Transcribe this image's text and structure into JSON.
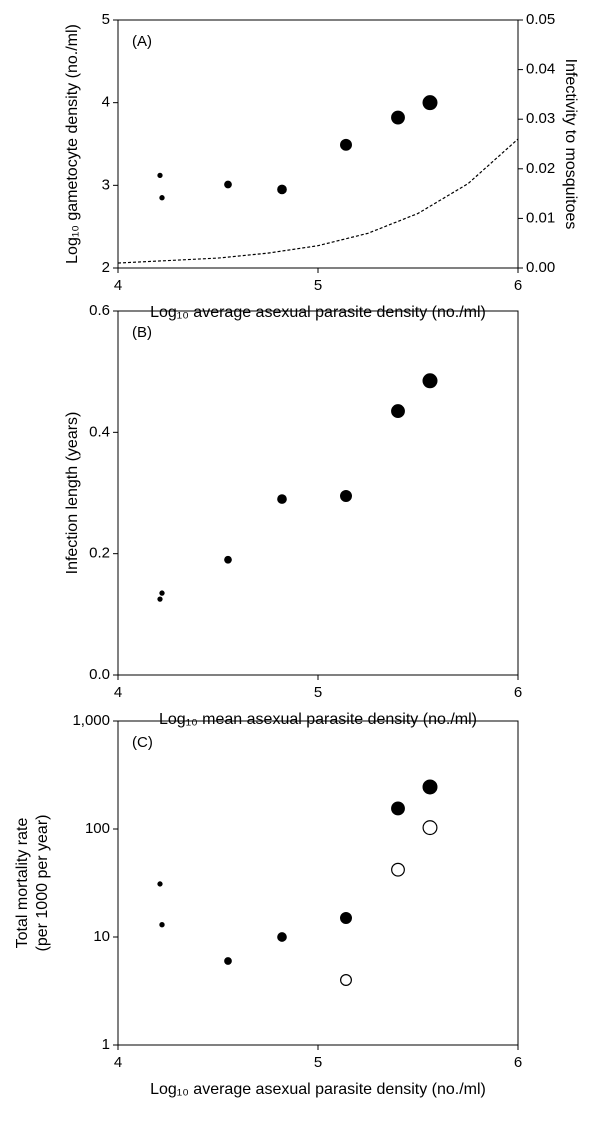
{
  "chart_data": [
    {
      "type": "scatter",
      "annotation": "(A)",
      "xlabel": "Log₁₀ average asexual parasite density (no./ml)",
      "ylabel": "Log₁₀ gametocyte density (no./ml)",
      "y2label": "Infectivity to mosquitoes",
      "xlim": [
        4,
        6
      ],
      "xticks": [
        4,
        5,
        6
      ],
      "ylim": [
        2,
        5
      ],
      "yticks": [
        2,
        3,
        4,
        5
      ],
      "y2lim": [
        0,
        0.05
      ],
      "y2ticks": [
        {
          "value": 0,
          "label": "0.00"
        },
        0.01,
        0.02,
        0.03,
        0.04,
        0.05
      ],
      "series": [
        {
          "marker": "filled",
          "color": "#000000",
          "x": [
            4.21,
            4.22,
            4.55,
            4.82,
            5.14,
            5.4,
            5.56
          ],
          "values": [
            3.12,
            2.85,
            3.01,
            2.95,
            3.49,
            3.82,
            4.0
          ]
        },
        {
          "marker": "line",
          "linestyle": "dashed",
          "axis": "y2",
          "color": "#000000",
          "x": [
            4.0,
            4.25,
            4.5,
            4.75,
            5.0,
            5.25,
            5.5,
            5.75,
            6.0
          ],
          "values": [
            0.001,
            0.0015,
            0.002,
            0.003,
            0.0045,
            0.007,
            0.011,
            0.017,
            0.026
          ]
        }
      ]
    },
    {
      "type": "scatter",
      "annotation": "(B)",
      "xlabel": "Log₁₀ mean asexual parasite density (no./ml)",
      "ylabel": "Infection length (years)",
      "xlim": [
        4,
        6
      ],
      "xticks": [
        4,
        5,
        6
      ],
      "ylim": [
        0,
        0.6
      ],
      "yticks": [
        {
          "value": 0,
          "label": "0.0"
        },
        0.2,
        0.4,
        0.6
      ],
      "series": [
        {
          "marker": "filled",
          "color": "#000000",
          "x": [
            4.21,
            4.22,
            4.55,
            4.82,
            5.14,
            5.4,
            5.56
          ],
          "values": [
            0.125,
            0.135,
            0.19,
            0.29,
            0.295,
            0.435,
            0.485
          ]
        }
      ]
    },
    {
      "type": "scatter",
      "annotation": "(C)",
      "ylog": true,
      "xlabel": "Log₁₀ average asexual parasite density (no./ml)",
      "ylabel": [
        "Total mortality rate",
        "(per 1000 per year)"
      ],
      "xlim": [
        4,
        6
      ],
      "xticks": [
        4,
        5,
        6
      ],
      "ylim": [
        1,
        1000
      ],
      "yticks": [
        1,
        10,
        100,
        {
          "value": 1000,
          "label": "1,000"
        }
      ],
      "series": [
        {
          "marker": "filled",
          "color": "#000000",
          "x": [
            4.21,
            4.22,
            4.55,
            4.82,
            5.14,
            5.4,
            5.56
          ],
          "values": [
            31,
            13,
            6,
            10,
            15,
            155,
            245
          ]
        },
        {
          "marker": "open",
          "color": "#000000",
          "x": [
            5.14,
            5.4,
            5.56
          ],
          "values": [
            4,
            42,
            103
          ]
        }
      ]
    }
  ]
}
